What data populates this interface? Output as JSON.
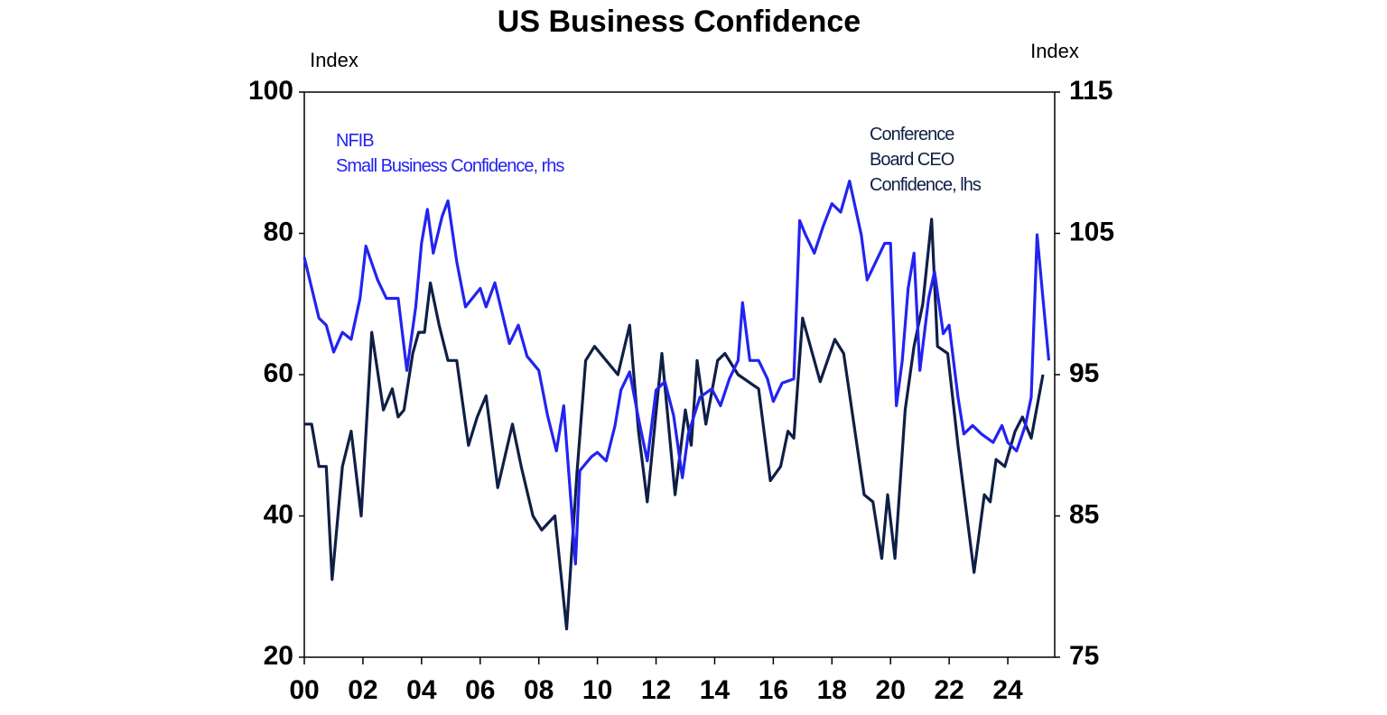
{
  "chart_data": {
    "type": "line",
    "title": "US Business Confidence",
    "y_label": "Index",
    "y2_label": "Index",
    "xlim": [
      2000,
      2025.6
    ],
    "xticks": [
      {
        "value": 2000,
        "label": "00"
      },
      {
        "value": 2002,
        "label": "02"
      },
      {
        "value": 2004,
        "label": "04"
      },
      {
        "value": 2006,
        "label": "06"
      },
      {
        "value": 2008,
        "label": "08"
      },
      {
        "value": 2010,
        "label": "10"
      },
      {
        "value": 2012,
        "label": "12"
      },
      {
        "value": 2014,
        "label": "14"
      },
      {
        "value": 2016,
        "label": "16"
      },
      {
        "value": 2018,
        "label": "18"
      },
      {
        "value": 2020,
        "label": "20"
      },
      {
        "value": 2022,
        "label": "22"
      },
      {
        "value": 2024,
        "label": "24"
      }
    ],
    "ylim": [
      20,
      100
    ],
    "yticks": [
      20,
      40,
      60,
      80,
      100
    ],
    "y2lim": [
      75,
      115
    ],
    "y2ticks": [
      75,
      85,
      95,
      105,
      115
    ],
    "grid": false,
    "series": [
      {
        "name": [
          "Conference",
          "Board CEO",
          "Confidence, lhs"
        ],
        "color": "#0f1f45",
        "axis": "y",
        "x": [
          2000.0,
          2000.25,
          2000.5,
          2000.75,
          2000.95,
          2001.3,
          2001.6,
          2001.94,
          2002.3,
          2002.7,
          2003.0,
          2003.2,
          2003.4,
          2003.7,
          2003.9,
          2004.1,
          2004.3,
          2004.6,
          2004.9,
          2005.2,
          2005.6,
          2005.9,
          2006.2,
          2006.6,
          2007.1,
          2007.4,
          2007.8,
          2008.1,
          2008.55,
          2008.95,
          2009.3,
          2009.6,
          2009.9,
          2010.3,
          2010.7,
          2011.1,
          2011.4,
          2011.7,
          2012.2,
          2012.65,
          2013.0,
          2013.2,
          2013.4,
          2013.7,
          2014.1,
          2014.35,
          2014.8,
          2015.5,
          2015.9,
          2016.25,
          2016.5,
          2016.7,
          2017.0,
          2017.6,
          2018.1,
          2018.4,
          2019.1,
          2019.4,
          2019.7,
          2019.9,
          2020.15,
          2020.5,
          2020.8,
          2021.1,
          2021.4,
          2021.6,
          2021.95,
          2022.3,
          2022.85,
          2023.2,
          2023.4,
          2023.6,
          2023.9,
          2024.25,
          2024.5,
          2024.8,
          2025.2
        ],
        "values": [
          53,
          53,
          47,
          47,
          31,
          47,
          52,
          40,
          66,
          55,
          58,
          54,
          55,
          63,
          66,
          66,
          73,
          67,
          62,
          62,
          50,
          54,
          57,
          44,
          53,
          47,
          40,
          38,
          40,
          24,
          46,
          62,
          64,
          62,
          60,
          67,
          52,
          42,
          63,
          43,
          55,
          50,
          62,
          53,
          62,
          63,
          60,
          58,
          45,
          47,
          52,
          51,
          68,
          59,
          65,
          63,
          43,
          42,
          34,
          43,
          34,
          55,
          64,
          70,
          82,
          64,
          63,
          50,
          32,
          43,
          42,
          48,
          47,
          52,
          54,
          51,
          60
        ]
      },
      {
        "name": [
          "NFIB",
          "Small Business Confidence, rhs"
        ],
        "color": "#2323f0",
        "axis": "y2",
        "x": [
          2000.0,
          2000.5,
          2000.75,
          2001.0,
          2001.3,
          2001.6,
          2001.9,
          2002.1,
          2002.5,
          2002.8,
          2003.2,
          2003.5,
          2003.8,
          2004.0,
          2004.2,
          2004.4,
          2004.7,
          2004.9,
          2005.2,
          2005.5,
          2006.0,
          2006.2,
          2006.5,
          2007.0,
          2007.3,
          2007.6,
          2008.0,
          2008.3,
          2008.6,
          2008.85,
          2009.1,
          2009.25,
          2009.4,
          2009.8,
          2010.0,
          2010.3,
          2010.6,
          2010.8,
          2011.1,
          2011.4,
          2011.7,
          2012.0,
          2012.3,
          2012.6,
          2012.9,
          2013.1,
          2013.5,
          2013.9,
          2014.2,
          2014.5,
          2014.8,
          2014.95,
          2015.2,
          2015.5,
          2015.8,
          2016.0,
          2016.3,
          2016.7,
          2016.9,
          2017.1,
          2017.4,
          2017.7,
          2018.0,
          2018.3,
          2018.6,
          2018.8,
          2019.0,
          2019.2,
          2019.5,
          2019.8,
          2020.0,
          2020.2,
          2020.4,
          2020.6,
          2020.8,
          2021.0,
          2021.3,
          2021.5,
          2021.8,
          2022.0,
          2022.3,
          2022.5,
          2022.8,
          2023.1,
          2023.5,
          2023.8,
          2024.0,
          2024.3,
          2024.6,
          2024.8,
          2025.0,
          2025.2,
          2025.4
        ],
        "values": [
          103.3,
          99,
          98.5,
          96.6,
          98,
          97.5,
          100.4,
          104.1,
          101.7,
          100.4,
          100.4,
          95.3,
          99.8,
          104.3,
          106.7,
          103.6,
          106.2,
          107.3,
          103,
          99.8,
          101.1,
          99.8,
          101.5,
          97.2,
          98.5,
          96.3,
          95.3,
          92.1,
          89.6,
          92.8,
          85.9,
          81.6,
          88.2,
          89.2,
          89.5,
          88.9,
          91.4,
          93.9,
          95.2,
          91.9,
          88.9,
          93.9,
          94.5,
          92.1,
          87.7,
          90.8,
          93.4,
          94,
          92.8,
          94.7,
          96,
          100.1,
          96,
          96,
          94.7,
          93.1,
          94.4,
          94.7,
          105.9,
          104.9,
          103.6,
          105.5,
          107.1,
          106.5,
          108.7,
          106.8,
          104.9,
          101.7,
          103,
          104.3,
          104.3,
          92.8,
          96,
          101.1,
          103.6,
          95.3,
          100.4,
          102.3,
          97.9,
          98.5,
          93.4,
          90.8,
          91.4,
          90.8,
          90.2,
          91.4,
          90.2,
          89.6,
          91.4,
          93.4,
          104.9,
          100.4,
          96
        ]
      }
    ]
  }
}
